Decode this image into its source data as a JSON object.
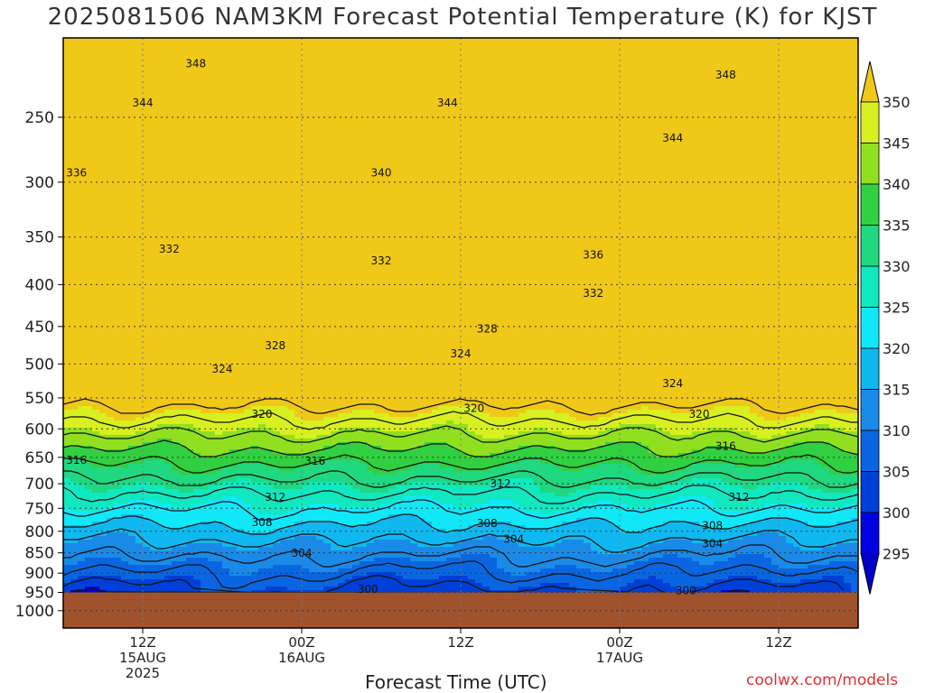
{
  "chart_data": {
    "type": "heatmap",
    "title": "2025081506 NAM3KM Forecast Potential Temperature (K) for KJST",
    "xlabel": "Forecast Time (UTC)",
    "ylabel": "",
    "credit": "coolwx.com/models",
    "y_axis": {
      "ticks": [
        250,
        300,
        350,
        400,
        450,
        500,
        550,
        600,
        650,
        700,
        750,
        800,
        850,
        900,
        950,
        1000
      ],
      "log_scale": true,
      "inverted": true,
      "ylim": [
        200,
        1050
      ]
    },
    "x_axis": {
      "ticks": [
        {
          "line1": "12Z",
          "line2": "15AUG",
          "line3": "2025"
        },
        {
          "line1": "00Z",
          "line2": "16AUG",
          "line3": ""
        },
        {
          "line1": "12Z",
          "line2": "",
          "line3": ""
        },
        {
          "line1": "00Z",
          "line2": "17AUG",
          "line3": ""
        },
        {
          "line1": "12Z",
          "line2": "",
          "line3": ""
        }
      ],
      "forecast_hours": [
        6,
        18,
        30,
        42,
        54
      ],
      "xlim_hours": [
        0,
        60
      ]
    },
    "grid": true,
    "colorbar": {
      "levels": [
        295,
        300,
        305,
        310,
        315,
        320,
        325,
        330,
        335,
        340,
        345,
        350
      ],
      "colors": [
        "#0000e0",
        "#0040d8",
        "#0a66e0",
        "#1a8ae8",
        "#10b8f0",
        "#10e8f8",
        "#10e8c0",
        "#20d880",
        "#30d040",
        "#90e020",
        "#d8f020",
        "#f8f810"
      ],
      "under_color": "#0000c8",
      "over_color": "#f0c818"
    },
    "ground_color": "#a0522d",
    "ground_pressure": 950,
    "contour_interval": 4,
    "contour_labels": [
      {
        "value": "348",
        "hour": 10,
        "p": 215
      },
      {
        "value": "348",
        "hour": 50,
        "p": 222
      },
      {
        "value": "344",
        "hour": 6,
        "p": 240
      },
      {
        "value": "344",
        "hour": 29,
        "p": 240
      },
      {
        "value": "344",
        "hour": 46,
        "p": 265
      },
      {
        "value": "340",
        "hour": 24,
        "p": 292
      },
      {
        "value": "336",
        "hour": 1,
        "p": 292
      },
      {
        "value": "336",
        "hour": 40,
        "p": 368
      },
      {
        "value": "332",
        "hour": 8,
        "p": 362
      },
      {
        "value": "332",
        "hour": 24,
        "p": 374
      },
      {
        "value": "332",
        "hour": 40,
        "p": 410
      },
      {
        "value": "328",
        "hour": 32,
        "p": 453
      },
      {
        "value": "328",
        "hour": 16,
        "p": 475
      },
      {
        "value": "324",
        "hour": 12,
        "p": 507
      },
      {
        "value": "324",
        "hour": 30,
        "p": 486
      },
      {
        "value": "324",
        "hour": 46,
        "p": 528
      },
      {
        "value": "320",
        "hour": 15,
        "p": 576
      },
      {
        "value": "320",
        "hour": 31,
        "p": 566
      },
      {
        "value": "320",
        "hour": 48,
        "p": 576
      },
      {
        "value": "316",
        "hour": 1,
        "p": 655
      },
      {
        "value": "316",
        "hour": 19,
        "p": 657
      },
      {
        "value": "316",
        "hour": 50,
        "p": 630
      },
      {
        "value": "312",
        "hour": 16,
        "p": 727
      },
      {
        "value": "312",
        "hour": 33,
        "p": 700
      },
      {
        "value": "312",
        "hour": 51,
        "p": 727
      },
      {
        "value": "308",
        "hour": 15,
        "p": 780
      },
      {
        "value": "308",
        "hour": 32,
        "p": 782
      },
      {
        "value": "308",
        "hour": 49,
        "p": 787
      },
      {
        "value": "304",
        "hour": 18,
        "p": 851
      },
      {
        "value": "304",
        "hour": 34,
        "p": 818
      },
      {
        "value": "304",
        "hour": 49,
        "p": 828
      },
      {
        "value": "300",
        "hour": 23,
        "p": 942
      },
      {
        "value": "300",
        "hour": 47,
        "p": 945
      }
    ]
  }
}
